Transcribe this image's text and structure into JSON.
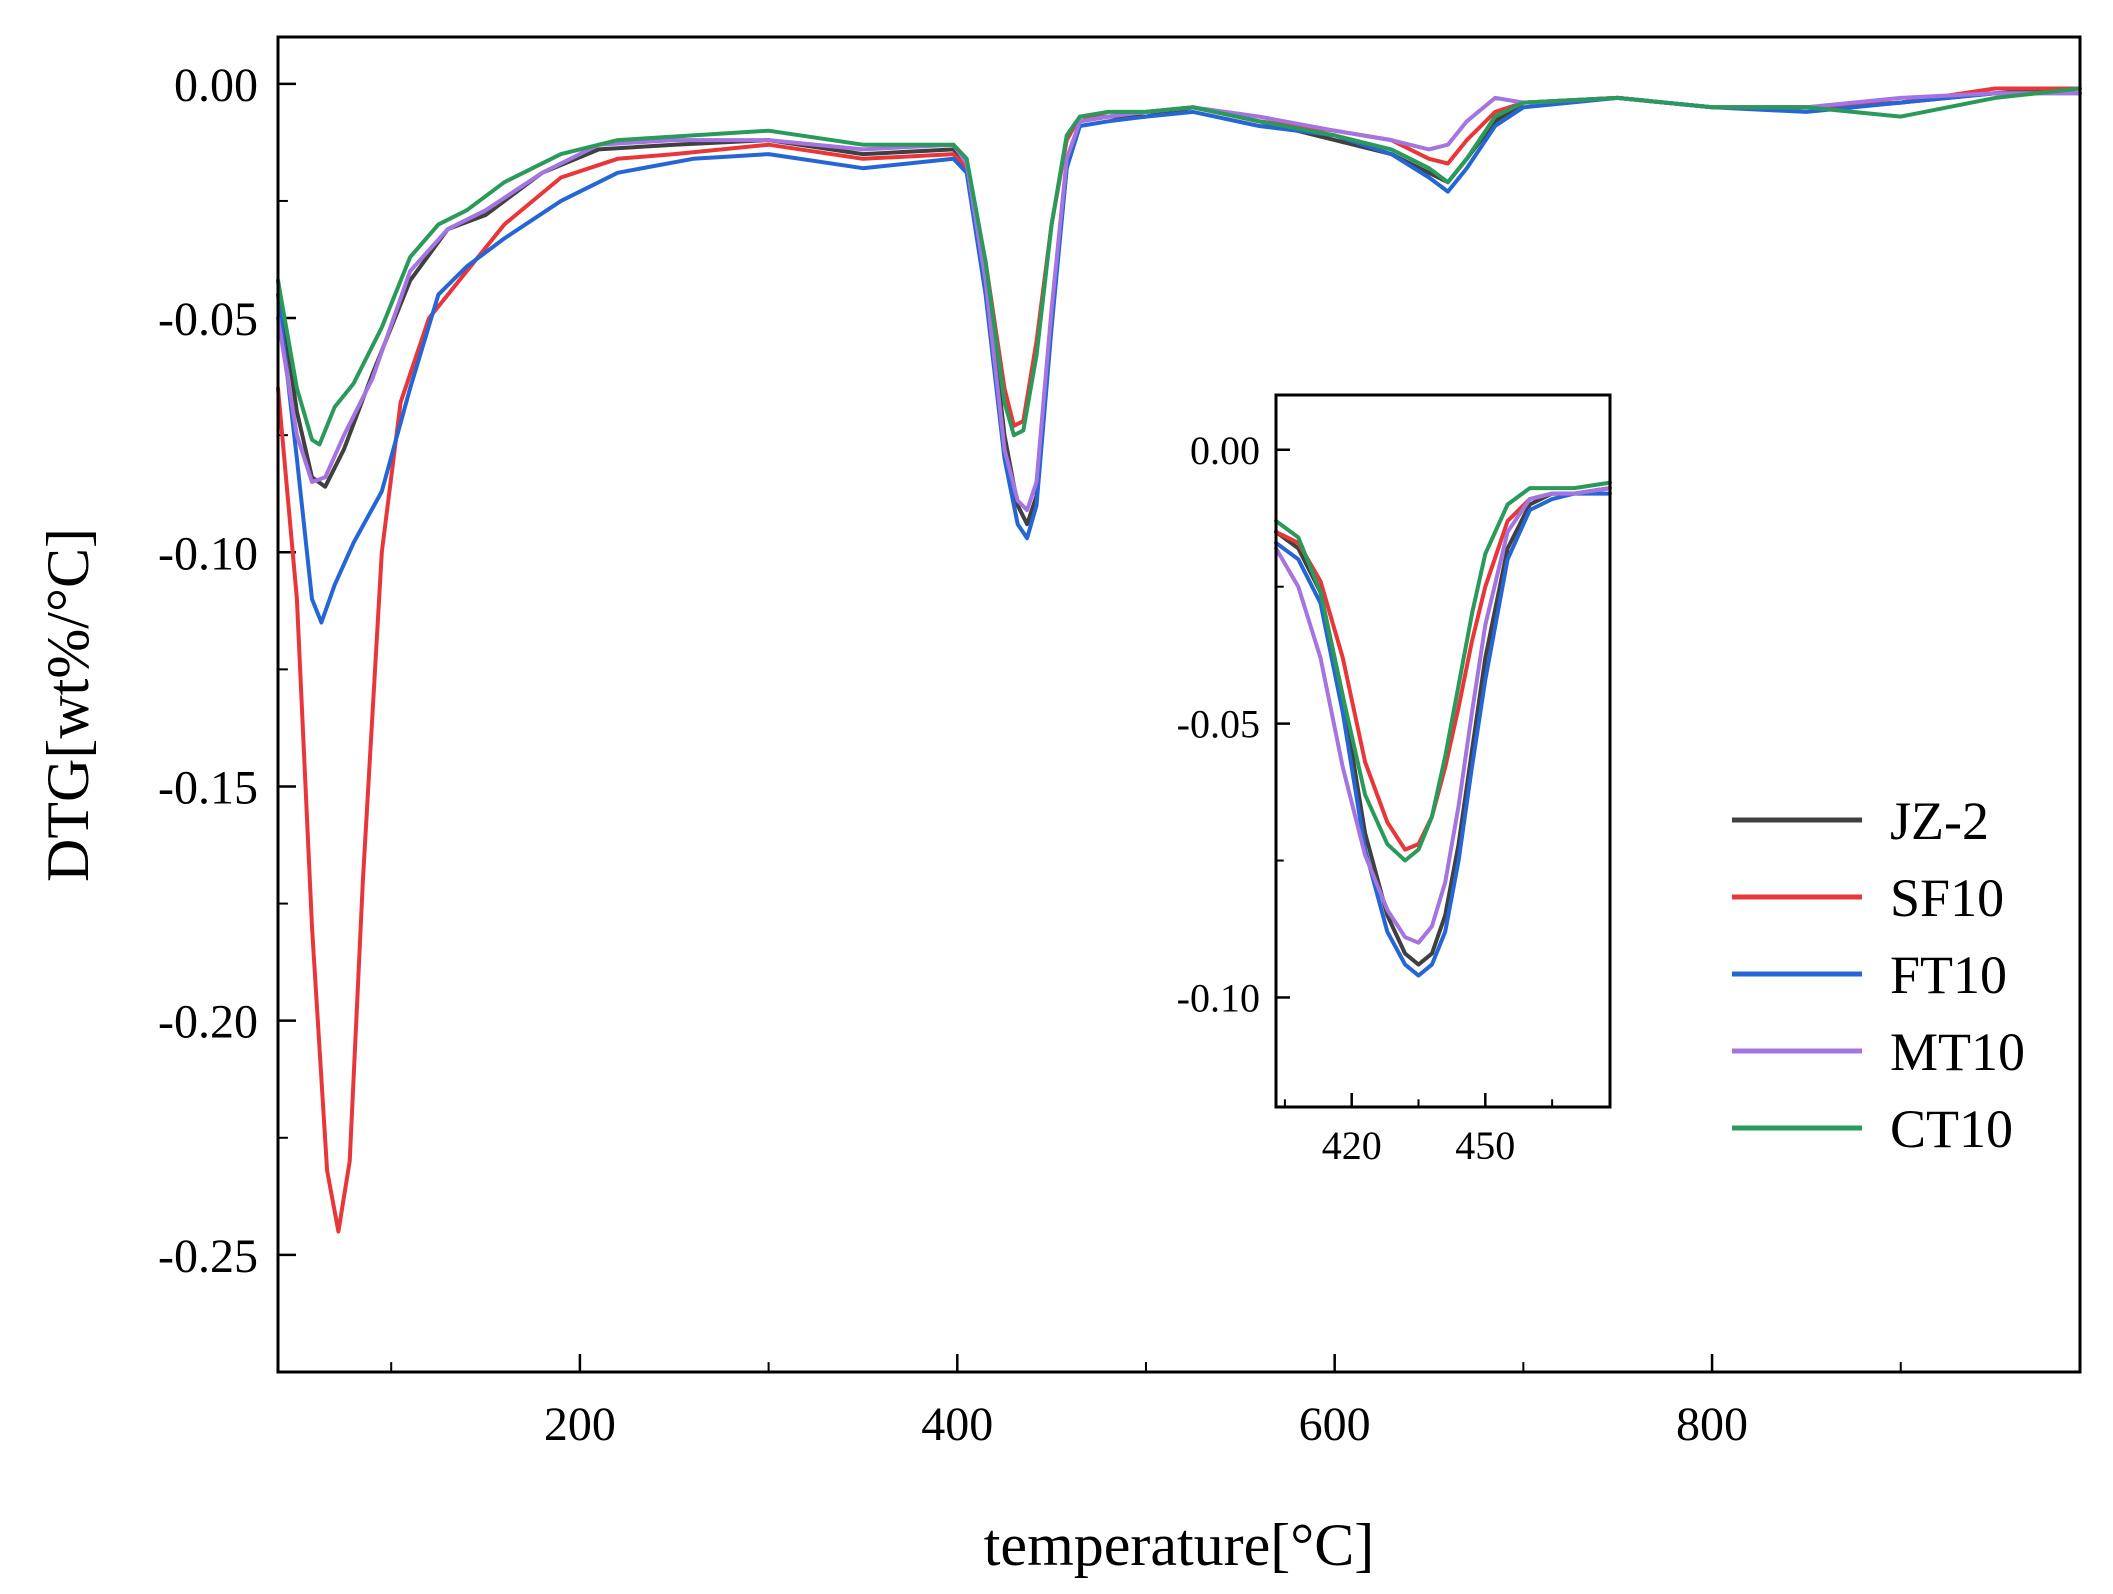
{
  "chart_data": [
    {
      "type": "line",
      "role": "main",
      "title": "",
      "xlabel": "temperature[°C]",
      "ylabel": "DTG[wt%/°C]",
      "xlim": [
        40,
        995
      ],
      "ylim": [
        -0.275,
        0.01
      ],
      "xticks": [
        200,
        400,
        600,
        800
      ],
      "xtick_labels": [
        "200",
        "400",
        "600",
        "800"
      ],
      "yticks": [
        0,
        -0.05,
        -0.1,
        -0.15,
        -0.2,
        -0.25
      ],
      "ytick_labels": [
        "0.00",
        "-0.05",
        "-0.10",
        "-0.15",
        "-0.20",
        "-0.25"
      ],
      "legend_position": "right",
      "series": [
        {
          "name": "JZ-2",
          "color": "#404040",
          "x": [
            40,
            50,
            58,
            65,
            75,
            90,
            110,
            130,
            150,
            180,
            210,
            250,
            300,
            350,
            398,
            405,
            415,
            425,
            432,
            437,
            442,
            450,
            458,
            465,
            480,
            500,
            525,
            560,
            600,
            630,
            650,
            660,
            670,
            685,
            700,
            750,
            800,
            850,
            900,
            950,
            995
          ],
          "y": [
            -0.042,
            -0.07,
            -0.084,
            -0.086,
            -0.078,
            -0.062,
            -0.042,
            -0.031,
            -0.028,
            -0.019,
            -0.014,
            -0.013,
            -0.012,
            -0.015,
            -0.014,
            -0.017,
            -0.04,
            -0.075,
            -0.09,
            -0.094,
            -0.088,
            -0.05,
            -0.018,
            -0.008,
            -0.007,
            -0.007,
            -0.005,
            -0.008,
            -0.012,
            -0.015,
            -0.019,
            -0.021,
            -0.016,
            -0.008,
            -0.004,
            -0.003,
            -0.005,
            -0.005,
            -0.004,
            -0.002,
            -0.001
          ]
        },
        {
          "name": "SF10",
          "color": "#e8373a",
          "x": [
            40,
            50,
            58,
            66,
            72,
            78,
            85,
            95,
            105,
            120,
            140,
            160,
            190,
            220,
            250,
            300,
            350,
            398,
            405,
            415,
            425,
            430,
            435,
            442,
            450,
            458,
            465,
            480,
            500,
            525,
            560,
            600,
            630,
            650,
            660,
            670,
            685,
            700,
            750,
            800,
            850,
            900,
            950,
            995
          ],
          "y": [
            -0.065,
            -0.11,
            -0.18,
            -0.232,
            -0.245,
            -0.23,
            -0.17,
            -0.1,
            -0.068,
            -0.05,
            -0.04,
            -0.03,
            -0.02,
            -0.016,
            -0.015,
            -0.013,
            -0.016,
            -0.015,
            -0.018,
            -0.038,
            -0.065,
            -0.073,
            -0.072,
            -0.055,
            -0.03,
            -0.012,
            -0.007,
            -0.007,
            -0.006,
            -0.005,
            -0.008,
            -0.01,
            -0.012,
            -0.016,
            -0.017,
            -0.012,
            -0.006,
            -0.004,
            -0.003,
            -0.005,
            -0.005,
            -0.004,
            -0.001,
            -0.001
          ]
        },
        {
          "name": "FT10",
          "color": "#2666d4",
          "x": [
            40,
            50,
            58,
            63,
            70,
            80,
            95,
            110,
            125,
            140,
            160,
            190,
            220,
            260,
            300,
            350,
            398,
            405,
            415,
            425,
            432,
            437,
            442,
            450,
            458,
            465,
            480,
            500,
            525,
            560,
            600,
            630,
            650,
            660,
            670,
            685,
            700,
            750,
            800,
            850,
            900,
            950,
            995
          ],
          "y": [
            -0.045,
            -0.08,
            -0.11,
            -0.115,
            -0.107,
            -0.098,
            -0.087,
            -0.065,
            -0.045,
            -0.039,
            -0.033,
            -0.025,
            -0.019,
            -0.016,
            -0.015,
            -0.018,
            -0.016,
            -0.019,
            -0.045,
            -0.08,
            -0.094,
            -0.097,
            -0.09,
            -0.052,
            -0.018,
            -0.009,
            -0.008,
            -0.007,
            -0.006,
            -0.009,
            -0.011,
            -0.015,
            -0.02,
            -0.023,
            -0.018,
            -0.009,
            -0.005,
            -0.003,
            -0.005,
            -0.006,
            -0.004,
            -0.002,
            -0.002
          ]
        },
        {
          "name": "MT10",
          "color": "#a474e0",
          "x": [
            40,
            50,
            58,
            65,
            75,
            90,
            110,
            130,
            150,
            180,
            210,
            250,
            300,
            350,
            398,
            405,
            415,
            425,
            432,
            437,
            442,
            450,
            458,
            465,
            480,
            500,
            525,
            560,
            600,
            630,
            650,
            660,
            670,
            685,
            700,
            750,
            800,
            850,
            900,
            950,
            995
          ],
          "y": [
            -0.05,
            -0.075,
            -0.085,
            -0.084,
            -0.075,
            -0.063,
            -0.04,
            -0.031,
            -0.027,
            -0.019,
            -0.013,
            -0.012,
            -0.012,
            -0.014,
            -0.013,
            -0.017,
            -0.042,
            -0.078,
            -0.089,
            -0.091,
            -0.085,
            -0.048,
            -0.016,
            -0.008,
            -0.007,
            -0.006,
            -0.005,
            -0.007,
            -0.01,
            -0.012,
            -0.014,
            -0.013,
            -0.008,
            -0.003,
            -0.004,
            -0.003,
            -0.005,
            -0.005,
            -0.003,
            -0.002,
            -0.002
          ]
        },
        {
          "name": "CT10",
          "color": "#2a9a5a",
          "x": [
            40,
            50,
            58,
            62,
            70,
            80,
            95,
            110,
            125,
            140,
            160,
            190,
            220,
            260,
            300,
            350,
            398,
            405,
            415,
            425,
            430,
            435,
            442,
            450,
            458,
            465,
            480,
            500,
            525,
            560,
            600,
            630,
            650,
            660,
            670,
            685,
            700,
            750,
            800,
            850,
            900,
            950,
            995
          ],
          "y": [
            -0.042,
            -0.065,
            -0.076,
            -0.077,
            -0.069,
            -0.064,
            -0.052,
            -0.037,
            -0.03,
            -0.027,
            -0.021,
            -0.015,
            -0.012,
            -0.011,
            -0.01,
            -0.013,
            -0.013,
            -0.016,
            -0.038,
            -0.068,
            -0.075,
            -0.074,
            -0.058,
            -0.03,
            -0.011,
            -0.007,
            -0.006,
            -0.006,
            -0.005,
            -0.008,
            -0.011,
            -0.014,
            -0.018,
            -0.021,
            -0.016,
            -0.007,
            -0.004,
            -0.003,
            -0.005,
            -0.005,
            -0.007,
            -0.003,
            -0.001
          ]
        }
      ]
    },
    {
      "type": "line",
      "role": "inset",
      "xlim": [
        403,
        478
      ],
      "ylim": [
        -0.12,
        0.01
      ],
      "xticks": [
        420,
        450
      ],
      "xtick_labels": [
        "420",
        "450"
      ],
      "yticks": [
        0,
        -0.05,
        -0.1
      ],
      "ytick_labels": [
        "0.00",
        "-0.05",
        "-0.10"
      ],
      "series": [
        {
          "name": "JZ-2",
          "color": "#404040",
          "x": [
            403,
            408,
            413,
            418,
            423,
            428,
            432,
            435,
            438,
            441,
            444,
            447,
            450,
            455,
            460,
            465,
            470,
            478
          ],
          "y": [
            -0.015,
            -0.018,
            -0.026,
            -0.045,
            -0.07,
            -0.085,
            -0.092,
            -0.094,
            -0.092,
            -0.085,
            -0.072,
            -0.055,
            -0.038,
            -0.018,
            -0.01,
            -0.008,
            -0.008,
            -0.007
          ]
        },
        {
          "name": "SF10",
          "color": "#e8373a",
          "x": [
            403,
            408,
            413,
            418,
            423,
            428,
            432,
            435,
            438,
            441,
            444,
            447,
            450,
            455,
            460,
            465,
            470,
            478
          ],
          "y": [
            -0.015,
            -0.017,
            -0.024,
            -0.038,
            -0.057,
            -0.068,
            -0.073,
            -0.072,
            -0.067,
            -0.058,
            -0.047,
            -0.035,
            -0.025,
            -0.013,
            -0.009,
            -0.008,
            -0.008,
            -0.007
          ]
        },
        {
          "name": "FT10",
          "color": "#2666d4",
          "x": [
            403,
            408,
            413,
            418,
            423,
            428,
            432,
            435,
            438,
            441,
            444,
            447,
            450,
            455,
            460,
            465,
            470,
            478
          ],
          "y": [
            -0.017,
            -0.02,
            -0.028,
            -0.048,
            -0.073,
            -0.088,
            -0.094,
            -0.096,
            -0.094,
            -0.088,
            -0.075,
            -0.058,
            -0.042,
            -0.02,
            -0.011,
            -0.009,
            -0.008,
            -0.008
          ]
        },
        {
          "name": "MT10",
          "color": "#a474e0",
          "x": [
            403,
            408,
            413,
            418,
            423,
            428,
            432,
            435,
            438,
            441,
            444,
            447,
            450,
            455,
            460,
            465,
            470,
            478
          ],
          "y": [
            -0.018,
            -0.025,
            -0.038,
            -0.058,
            -0.074,
            -0.084,
            -0.089,
            -0.09,
            -0.087,
            -0.079,
            -0.065,
            -0.048,
            -0.032,
            -0.015,
            -0.009,
            -0.008,
            -0.008,
            -0.007
          ]
        },
        {
          "name": "CT10",
          "color": "#2a9a5a",
          "x": [
            403,
            408,
            413,
            418,
            423,
            428,
            432,
            435,
            438,
            441,
            444,
            447,
            450,
            455,
            460,
            465,
            470,
            478
          ],
          "y": [
            -0.013,
            -0.016,
            -0.026,
            -0.045,
            -0.063,
            -0.072,
            -0.075,
            -0.073,
            -0.067,
            -0.056,
            -0.043,
            -0.03,
            -0.019,
            -0.01,
            -0.007,
            -0.007,
            -0.007,
            -0.006
          ]
        }
      ]
    }
  ]
}
